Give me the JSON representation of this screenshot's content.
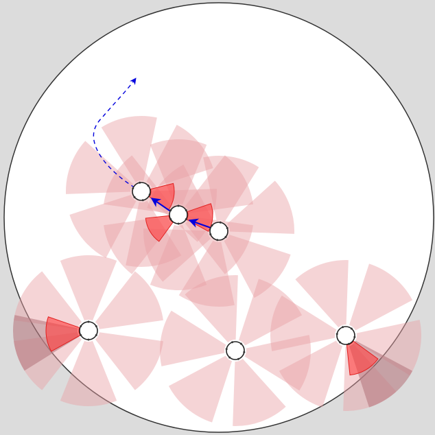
{
  "scene": {
    "kind": "top-down robot sensor simulation",
    "colors": {
      "background": "#dcdcdc",
      "arena_fill": "#ffffff",
      "arena_stroke": "#333333",
      "sensor_cone": "#e8a0a5",
      "sensor_cone_opacity": 0.45,
      "active_cone": "#ff3c3c",
      "active_cone_opacity": 0.6,
      "blocked_cone": "#b87a80",
      "robot_fill": "#ffffff",
      "robot_stroke": "#222222",
      "trajectory": "#0000dd",
      "heading_arrow": "#0000dd"
    },
    "legend": null
  }
}
